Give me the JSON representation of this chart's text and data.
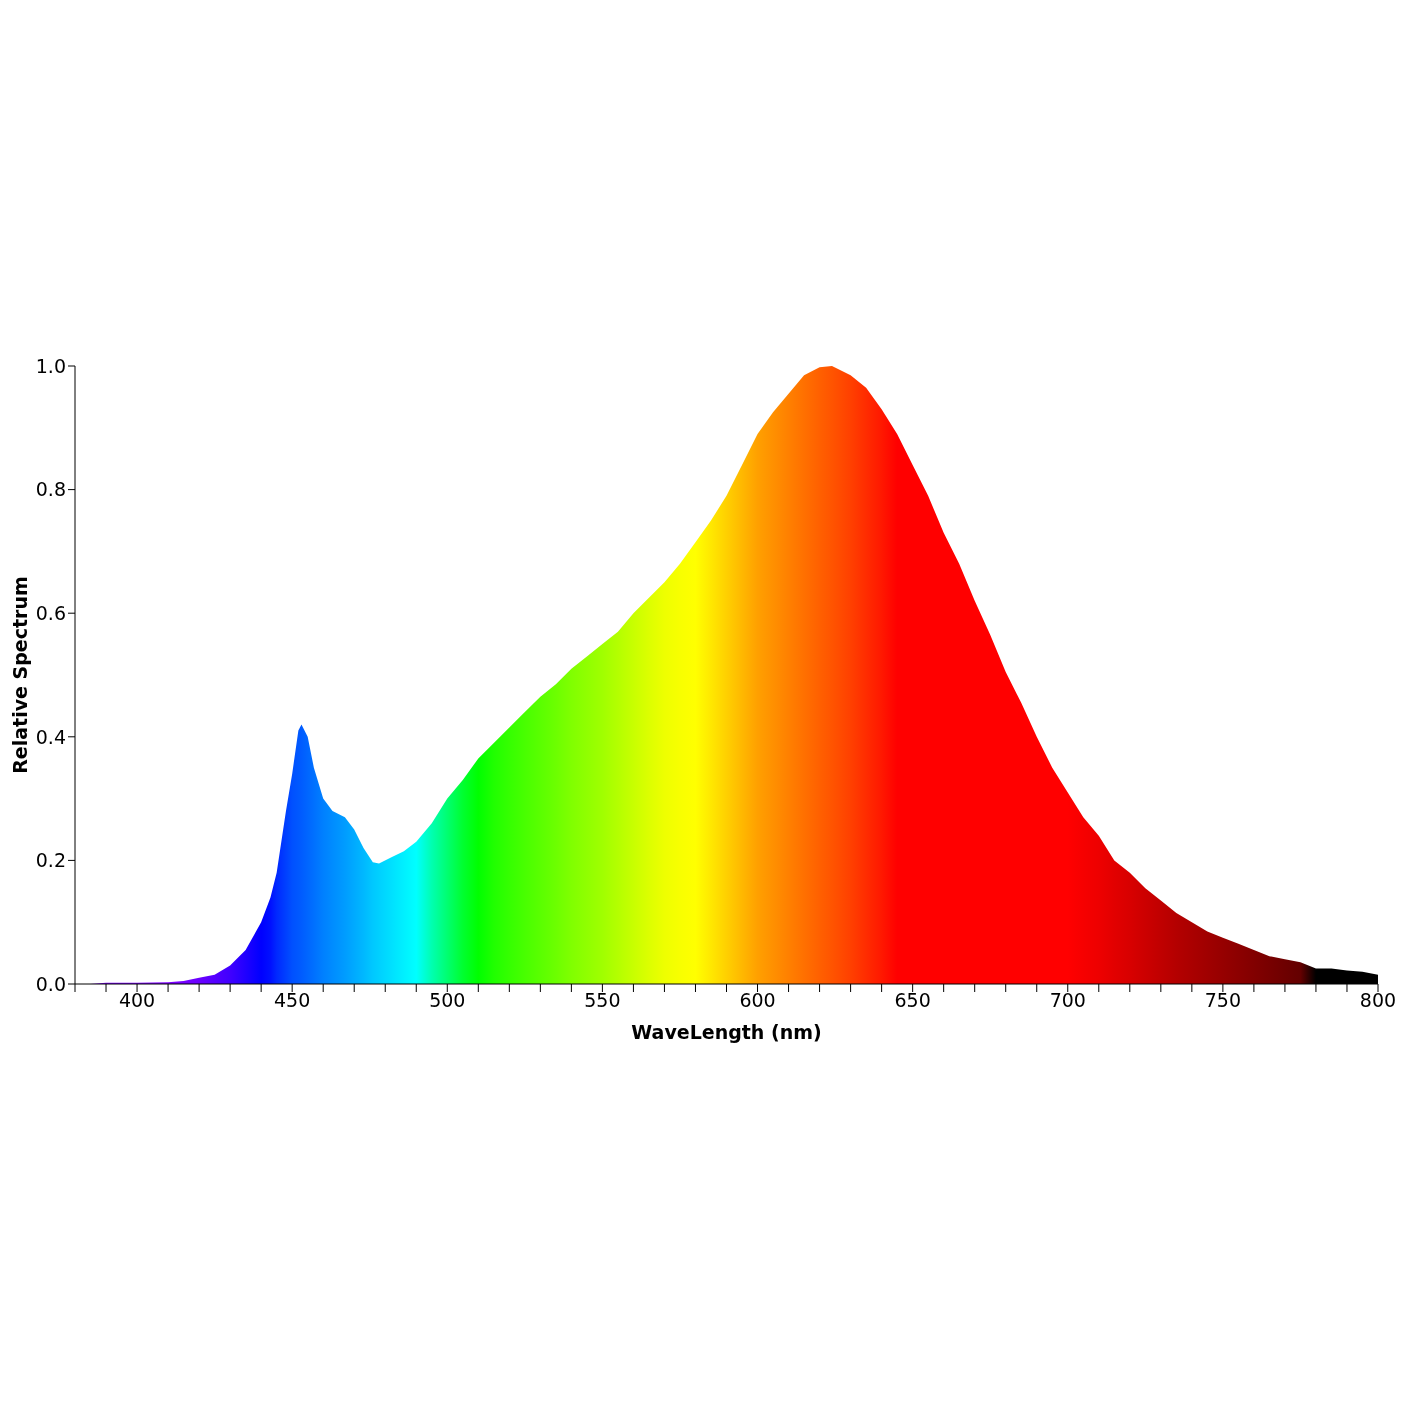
{
  "chart_data": {
    "type": "area",
    "xlabel": "WaveLength (nm)",
    "ylabel": "Relative Spectrum",
    "xlim": [
      380,
      800
    ],
    "xticks": [
      {
        "value": 380,
        "label": null
      },
      {
        "value": 390,
        "label": null
      },
      400,
      {
        "value": 410,
        "label": null
      },
      {
        "value": 420,
        "label": null
      },
      {
        "value": 430,
        "label": null
      },
      {
        "value": 440,
        "label": null
      },
      450,
      {
        "value": 460,
        "label": null
      },
      {
        "value": 470,
        "label": null
      },
      {
        "value": 480,
        "label": null
      },
      {
        "value": 490,
        "label": null
      },
      500,
      {
        "value": 510,
        "label": null
      },
      {
        "value": 520,
        "label": null
      },
      {
        "value": 530,
        "label": null
      },
      {
        "value": 540,
        "label": null
      },
      550,
      {
        "value": 560,
        "label": null
      },
      {
        "value": 570,
        "label": null
      },
      {
        "value": 580,
        "label": null
      },
      {
        "value": 590,
        "label": null
      },
      600,
      {
        "value": 610,
        "label": null
      },
      {
        "value": 620,
        "label": null
      },
      {
        "value": 630,
        "label": null
      },
      {
        "value": 640,
        "label": null
      },
      650,
      {
        "value": 660,
        "label": null
      },
      {
        "value": 670,
        "label": null
      },
      {
        "value": 680,
        "label": null
      },
      {
        "value": 690,
        "label": null
      },
      700,
      {
        "value": 710,
        "label": null
      },
      {
        "value": 720,
        "label": null
      },
      {
        "value": 730,
        "label": null
      },
      {
        "value": 740,
        "label": null
      },
      750,
      {
        "value": 760,
        "label": null
      },
      {
        "value": 770,
        "label": null
      },
      {
        "value": 780,
        "label": null
      },
      {
        "value": 790,
        "label": null
      },
      800
    ],
    "ylim": [
      0,
      1
    ],
    "yticks": [
      {
        "value": 0,
        "label": "0.0"
      },
      0.2,
      0.4,
      0.6,
      0.8,
      {
        "value": 1,
        "label": "1.0"
      }
    ],
    "x": [
      380,
      385,
      390,
      400,
      410,
      415,
      420,
      425,
      430,
      435,
      440,
      443,
      445,
      448,
      450,
      452,
      453,
      455,
      457,
      460,
      463,
      467,
      470,
      473,
      476,
      478,
      482,
      486,
      490,
      495,
      500,
      505,
      510,
      515,
      520,
      525,
      530,
      535,
      540,
      545,
      550,
      555,
      560,
      565,
      570,
      575,
      580,
      585,
      590,
      595,
      600,
      605,
      610,
      615,
      620,
      624,
      630,
      635,
      640,
      645,
      650,
      655,
      660,
      665,
      670,
      675,
      680,
      685,
      690,
      695,
      700,
      705,
      710,
      715,
      720,
      725,
      730,
      735,
      740,
      745,
      750,
      755,
      760,
      765,
      770,
      775,
      780,
      785,
      790,
      795,
      800
    ],
    "values": [
      0,
      0,
      0.002,
      0.002,
      0.003,
      0.005,
      0.01,
      0.015,
      0.03,
      0.055,
      0.1,
      0.14,
      0.18,
      0.28,
      0.34,
      0.41,
      0.42,
      0.4,
      0.35,
      0.3,
      0.28,
      0.27,
      0.25,
      0.22,
      0.197,
      0.195,
      0.205,
      0.215,
      0.23,
      0.26,
      0.3,
      0.33,
      0.365,
      0.39,
      0.415,
      0.44,
      0.465,
      0.485,
      0.51,
      0.53,
      0.55,
      0.57,
      0.6,
      0.625,
      0.65,
      0.68,
      0.715,
      0.75,
      0.79,
      0.84,
      0.89,
      0.925,
      0.955,
      0.985,
      0.998,
      1,
      0.985,
      0.965,
      0.93,
      0.89,
      0.84,
      0.79,
      0.73,
      0.68,
      0.62,
      0.565,
      0.505,
      0.455,
      0.4,
      0.35,
      0.31,
      0.27,
      0.24,
      0.2,
      0.18,
      0.155,
      0.135,
      0.115,
      0.1,
      0.085,
      0.075,
      0.065,
      0.055,
      0.045,
      0.04,
      0.035,
      0.025,
      0.025,
      0.022,
      0.02,
      0.015
    ],
    "colors": [
      "#7f00ff",
      "#7f00ff",
      "#7f00ff",
      "#7f00ff",
      "#7f00ff",
      "#7500ff",
      "#6a00ff",
      "#5500ff",
      "#4000ff",
      "#2000ff",
      "#0000ff",
      "#0010ff",
      "#0028ff",
      "#0040ff",
      "#0050ff",
      "#0058ff",
      "#005cff",
      "#0066ff",
      "#0070ff",
      "#0080ff",
      "#008cff",
      "#009cff",
      "#00aaff",
      "#00b8ff",
      "#00c8ff",
      "#00d0ff",
      "#00e0ff",
      "#00f0ff",
      "#00ffff",
      "#00ffb0",
      "#00ff70",
      "#00ff30",
      "#00ff00",
      "#20ff00",
      "#35ff00",
      "#48ff00",
      "#5aff00",
      "#6cff00",
      "#80ff00",
      "#90ff00",
      "#a0ff00",
      "#b4ff00",
      "#c8ff00",
      "#dcff00",
      "#eeff00",
      "#f8ff00",
      "#ffff00",
      "#ffe800",
      "#ffd000",
      "#ffb800",
      "#ffa000",
      "#ff9000",
      "#ff8000",
      "#ff7000",
      "#ff6000",
      "#ff5400",
      "#ff4000",
      "#ff2c00",
      "#ff1800",
      "#ff0000",
      "#ff0000",
      "#ff0000",
      "#ff0000",
      "#ff0000",
      "#ff0000",
      "#ff0000",
      "#ff0000",
      "#ff0000",
      "#ff0000",
      "#ff0000",
      "#ff0000",
      "#f60000",
      "#ee0000",
      "#e20000",
      "#d80000",
      "#cc0000",
      "#c00000",
      "#b40000",
      "#aa0000",
      "#a00000",
      "#960000",
      "#8c0000",
      "#820000",
      "#780000",
      "#6e0000",
      "#640000",
      "#000000",
      "#000000",
      "#000000",
      "#000000",
      "#000000"
    ]
  }
}
